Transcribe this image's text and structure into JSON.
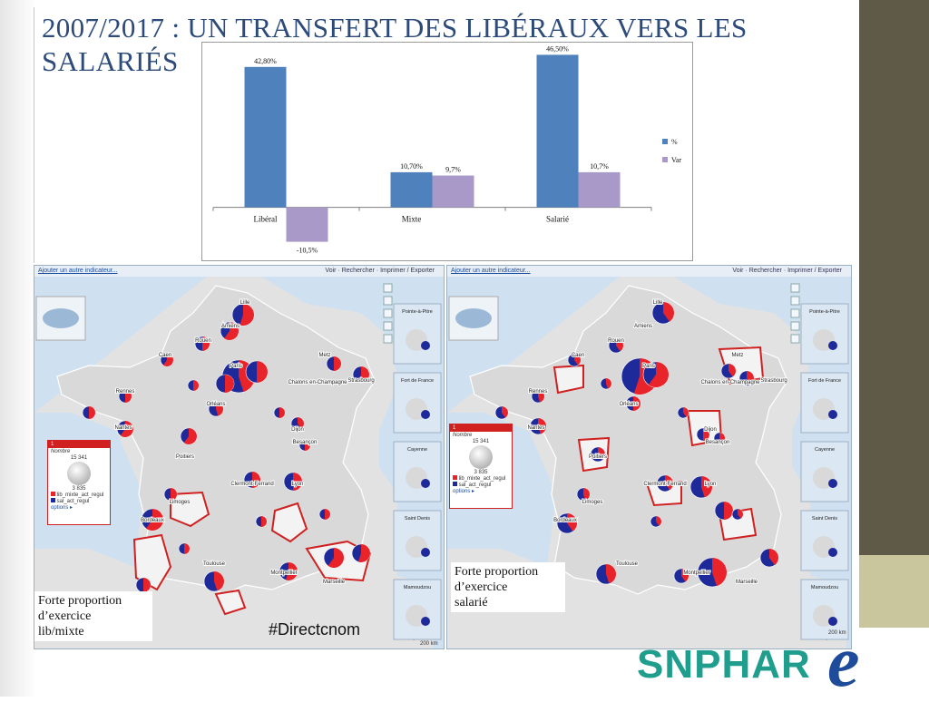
{
  "title": "2007/2017 : UN TRANSFERT DES LIBÉRAUX VERS LES SALARIÉS",
  "chart_data": {
    "type": "bar",
    "categories": [
      "Libéral",
      "Mixte",
      "Salarié"
    ],
    "series": [
      {
        "name": "%",
        "values": [
          42.8,
          10.7,
          46.5
        ],
        "labels": [
          "42,80%",
          "10,70%",
          "46,50%"
        ],
        "color": "#4f81bd"
      },
      {
        "name": "Var",
        "values": [
          -10.5,
          9.7,
          10.7
        ],
        "labels": [
          "-10,5%",
          "9,7%",
          "10,7%"
        ],
        "color": "#a999c9"
      }
    ],
    "ylim": [
      -12,
      48
    ],
    "legend": "right"
  },
  "map_left": {
    "toolbar": {
      "add_link": "Ajouter un autre indicateur...",
      "tools": "Voir · Rechercher · Imprimer / Exporter"
    },
    "legend": {
      "index": "1",
      "title": "Nombre",
      "max": "15 341",
      "min": "3 835",
      "items": [
        "lib_mixte_act_regul",
        "sal_act_regul"
      ],
      "options": "options ▸"
    },
    "cities": [
      "Lille",
      "Amiens",
      "Rouen",
      "Caen",
      "Paris",
      "Metz",
      "Chalons en-Champagne",
      "Strasbourg",
      "Rennes",
      "Orléans",
      "Nantes",
      "Dijon",
      "Besançon",
      "Poitiers",
      "Clermont-Ferrand",
      "Limoges",
      "Lyon",
      "Bordeaux",
      "Toulouse",
      "Montpellier",
      "Marseille",
      "Ajaccio"
    ],
    "insets": [
      "Pointe-à-Pitre",
      "Fort de France",
      "Cayenne",
      "Saint Denis",
      "Mamoudzou"
    ],
    "caption": "Forte proportion\nd’exercice\nlib/mixte",
    "scale": "200 km"
  },
  "map_right": {
    "toolbar": {
      "add_link": "Ajouter un autre indicateur...",
      "tools": "Voir · Rechercher · Imprimer / Exporter"
    },
    "legend": {
      "index": "1",
      "title": "Nombre",
      "max": "15 341",
      "min": "3 835",
      "items": [
        "lib_mixte_act_regul",
        "sal_act_regul"
      ],
      "options": "options ▸"
    },
    "caption": "Forte proportion\nd’exercice\nsalarié",
    "scale": "200 km"
  },
  "hashtag": "#Directcnom",
  "logo": {
    "text": "SNPHAR",
    "suffix": "e"
  },
  "colors": {
    "lib_mixte": "#e8232a",
    "sal": "#1e2a9a",
    "land": "#d9d9d9",
    "sea": "#cfe0f0"
  }
}
